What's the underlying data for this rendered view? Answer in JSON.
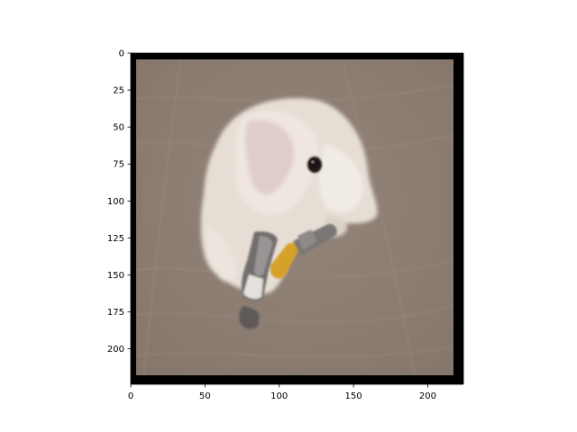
{
  "figure": {
    "image_subject": "fluffy white dog lying on wooden floor with a claw hammer",
    "image_extent": {
      "x": [
        0,
        224
      ],
      "y": [
        0,
        224
      ]
    },
    "colors": {
      "floor": "#8f8178",
      "fur": "#e9e2da",
      "border": "#000000",
      "hammer_handle": "#d6a12a",
      "hammer_head": "#6f6c6c"
    },
    "x_axis": {
      "ticks": [
        "0",
        "50",
        "100",
        "150",
        "200"
      ]
    },
    "y_axis": {
      "ticks": [
        "0",
        "25",
        "50",
        "75",
        "100",
        "125",
        "150",
        "175",
        "200"
      ]
    }
  }
}
